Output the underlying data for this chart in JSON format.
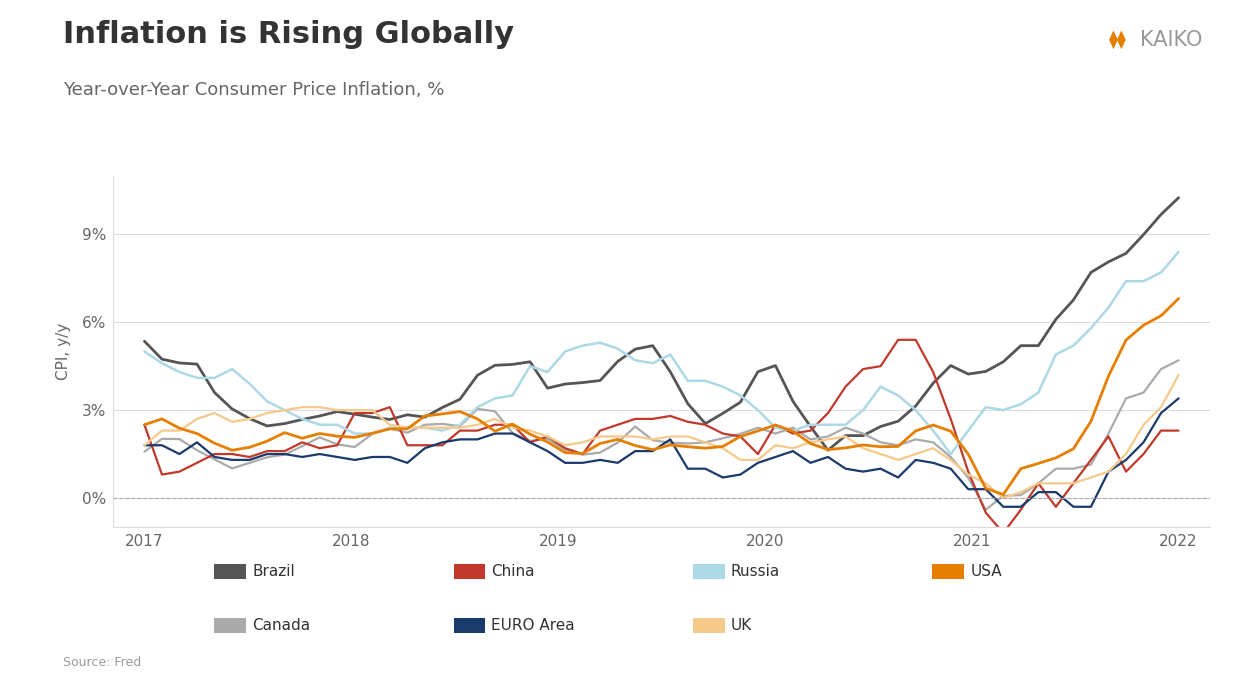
{
  "title": "Inflation is Rising Globally",
  "subtitle": "Year-over-Year Consumer Price Inflation, %",
  "ylabel": "CPI, y/y",
  "source": "Source: Fred",
  "background_color": "#ffffff",
  "ylim": [
    -1.0,
    11.0
  ],
  "yticks": [
    0,
    3,
    6,
    9
  ],
  "ytick_labels": [
    "0%",
    "3%",
    "6%",
    "9%"
  ],
  "series": {
    "Brazil": {
      "color": "#555555",
      "linewidth": 2.0,
      "data": [
        5.35,
        4.74,
        4.61,
        4.57,
        3.6,
        3.04,
        2.71,
        2.46,
        2.54,
        2.68,
        2.8,
        2.95,
        2.86,
        2.76,
        2.68,
        2.84,
        2.76,
        3.09,
        3.37,
        4.19,
        4.53,
        4.56,
        4.65,
        3.75,
        3.89,
        3.94,
        4.01,
        4.66,
        5.08,
        5.2,
        4.31,
        3.22,
        2.54,
        2.89,
        3.27,
        4.31,
        4.52,
        3.3,
        2.44,
        1.63,
        2.13,
        2.13,
        2.44,
        2.62,
        3.14,
        3.92,
        4.52,
        4.23,
        4.32,
        4.65,
        5.2,
        5.2,
        6.1,
        6.76,
        7.7,
        8.06,
        8.35,
        8.99,
        9.68,
        10.25
      ]
    },
    "Canada": {
      "color": "#aaaaaa",
      "linewidth": 1.6,
      "data": [
        1.58,
        2.02,
        2.01,
        1.63,
        1.32,
        1.01,
        1.2,
        1.39,
        1.48,
        1.77,
        2.07,
        1.83,
        1.74,
        2.19,
        2.37,
        2.23,
        2.5,
        2.53,
        2.45,
        3.04,
        2.96,
        2.22,
        1.95,
        2.02,
        1.65,
        1.48,
        1.55,
        1.89,
        2.44,
        1.97,
        1.89,
        1.86,
        1.9,
        2.04,
        2.19,
        2.4,
        2.2,
        2.4,
        2.0,
        2.1,
        2.4,
        2.2,
        1.9,
        1.8,
        2.0,
        1.9,
        1.4,
        0.69,
        -0.4,
        0.07,
        0.1,
        0.5,
        1.0,
        1.0,
        1.14,
        2.2,
        3.4,
        3.6,
        4.4,
        4.7
      ]
    },
    "China": {
      "color": "#c0392b",
      "linewidth": 1.6,
      "data": [
        2.5,
        0.8,
        0.9,
        1.2,
        1.5,
        1.5,
        1.4,
        1.6,
        1.6,
        1.9,
        1.7,
        1.8,
        2.9,
        2.9,
        3.1,
        1.8,
        1.8,
        1.8,
        2.3,
        2.3,
        2.5,
        2.5,
        1.9,
        2.1,
        1.7,
        1.5,
        2.3,
        2.5,
        2.7,
        2.7,
        2.8,
        2.6,
        2.5,
        2.2,
        2.1,
        1.5,
        2.5,
        2.2,
        2.3,
        2.9,
        3.8,
        4.4,
        4.5,
        5.4,
        5.4,
        4.3,
        2.7,
        0.9,
        -0.5,
        -1.2,
        -0.4,
        0.5,
        -0.3,
        0.5,
        1.3,
        2.1,
        0.9,
        1.5,
        2.3,
        2.3
      ]
    },
    "EURO Area": {
      "color": "#1a3a6b",
      "linewidth": 1.6,
      "data": [
        1.8,
        1.8,
        1.5,
        1.9,
        1.4,
        1.3,
        1.3,
        1.5,
        1.5,
        1.4,
        1.5,
        1.4,
        1.3,
        1.4,
        1.4,
        1.2,
        1.7,
        1.9,
        2.0,
        2.0,
        2.2,
        2.2,
        1.9,
        1.6,
        1.2,
        1.2,
        1.3,
        1.2,
        1.6,
        1.6,
        2.0,
        1.0,
        1.0,
        0.7,
        0.8,
        1.2,
        1.4,
        1.6,
        1.2,
        1.4,
        1.0,
        0.9,
        1.0,
        0.7,
        1.3,
        1.2,
        1.0,
        0.3,
        0.3,
        -0.3,
        -0.3,
        0.2,
        0.2,
        -0.3,
        -0.3,
        0.9,
        1.3,
        1.9,
        2.9,
        3.4
      ]
    },
    "Russia": {
      "color": "#add8e6",
      "linewidth": 1.8,
      "data": [
        5.0,
        4.6,
        4.3,
        4.1,
        4.1,
        4.4,
        3.9,
        3.3,
        3.0,
        2.7,
        2.5,
        2.5,
        2.2,
        2.2,
        2.4,
        2.4,
        2.4,
        2.3,
        2.5,
        3.1,
        3.4,
        3.5,
        4.5,
        4.3,
        5.0,
        5.2,
        5.3,
        5.1,
        4.7,
        4.6,
        4.9,
        4.0,
        4.0,
        3.8,
        3.5,
        3.0,
        2.4,
        2.3,
        2.5,
        2.5,
        2.5,
        3.0,
        3.8,
        3.5,
        3.0,
        2.3,
        1.5,
        2.3,
        3.1,
        3.0,
        3.2,
        3.6,
        4.9,
        5.2,
        5.8,
        6.5,
        7.4,
        7.4,
        7.7,
        8.4
      ]
    },
    "UK": {
      "color": "#f5c98a",
      "linewidth": 1.6,
      "data": [
        1.8,
        2.3,
        2.3,
        2.7,
        2.9,
        2.6,
        2.7,
        2.9,
        3.0,
        3.1,
        3.1,
        3.0,
        3.0,
        3.0,
        2.5,
        2.4,
        2.4,
        2.4,
        2.4,
        2.5,
        2.7,
        2.4,
        2.3,
        2.1,
        1.8,
        1.9,
        2.1,
        2.1,
        2.1,
        2.0,
        2.1,
        2.1,
        1.9,
        1.7,
        1.3,
        1.3,
        1.8,
        1.7,
        1.9,
        2.0,
        2.1,
        1.7,
        1.5,
        1.3,
        1.5,
        1.7,
        1.3,
        0.8,
        0.5,
        0.0,
        0.2,
        0.5,
        0.5,
        0.5,
        0.7,
        0.9,
        1.5,
        2.5,
        3.1,
        4.2
      ]
    },
    "USA": {
      "color": "#e67e00",
      "linewidth": 2.0,
      "data": [
        2.5,
        2.7,
        2.38,
        2.2,
        1.87,
        1.63,
        1.73,
        1.94,
        2.23,
        2.04,
        2.2,
        2.11,
        2.07,
        2.21,
        2.36,
        2.36,
        2.8,
        2.87,
        2.95,
        2.7,
        2.28,
        2.52,
        2.18,
        1.91,
        1.55,
        1.52,
        1.86,
        2.0,
        1.79,
        1.65,
        1.81,
        1.75,
        1.7,
        1.76,
        2.1,
        2.29,
        2.49,
        2.28,
        1.86,
        1.65,
        1.71,
        1.81,
        1.75,
        1.76,
        2.29,
        2.49,
        2.28,
        1.5,
        0.33,
        0.12,
        1.0,
        1.18,
        1.37,
        1.68,
        2.62,
        4.16,
        5.39,
        5.9,
        6.22,
        6.81
      ]
    }
  },
  "legend_row1": [
    "Brazil",
    "China",
    "Russia",
    "USA"
  ],
  "legend_row2": [
    "Canada",
    "EURO Area",
    "UK"
  ]
}
